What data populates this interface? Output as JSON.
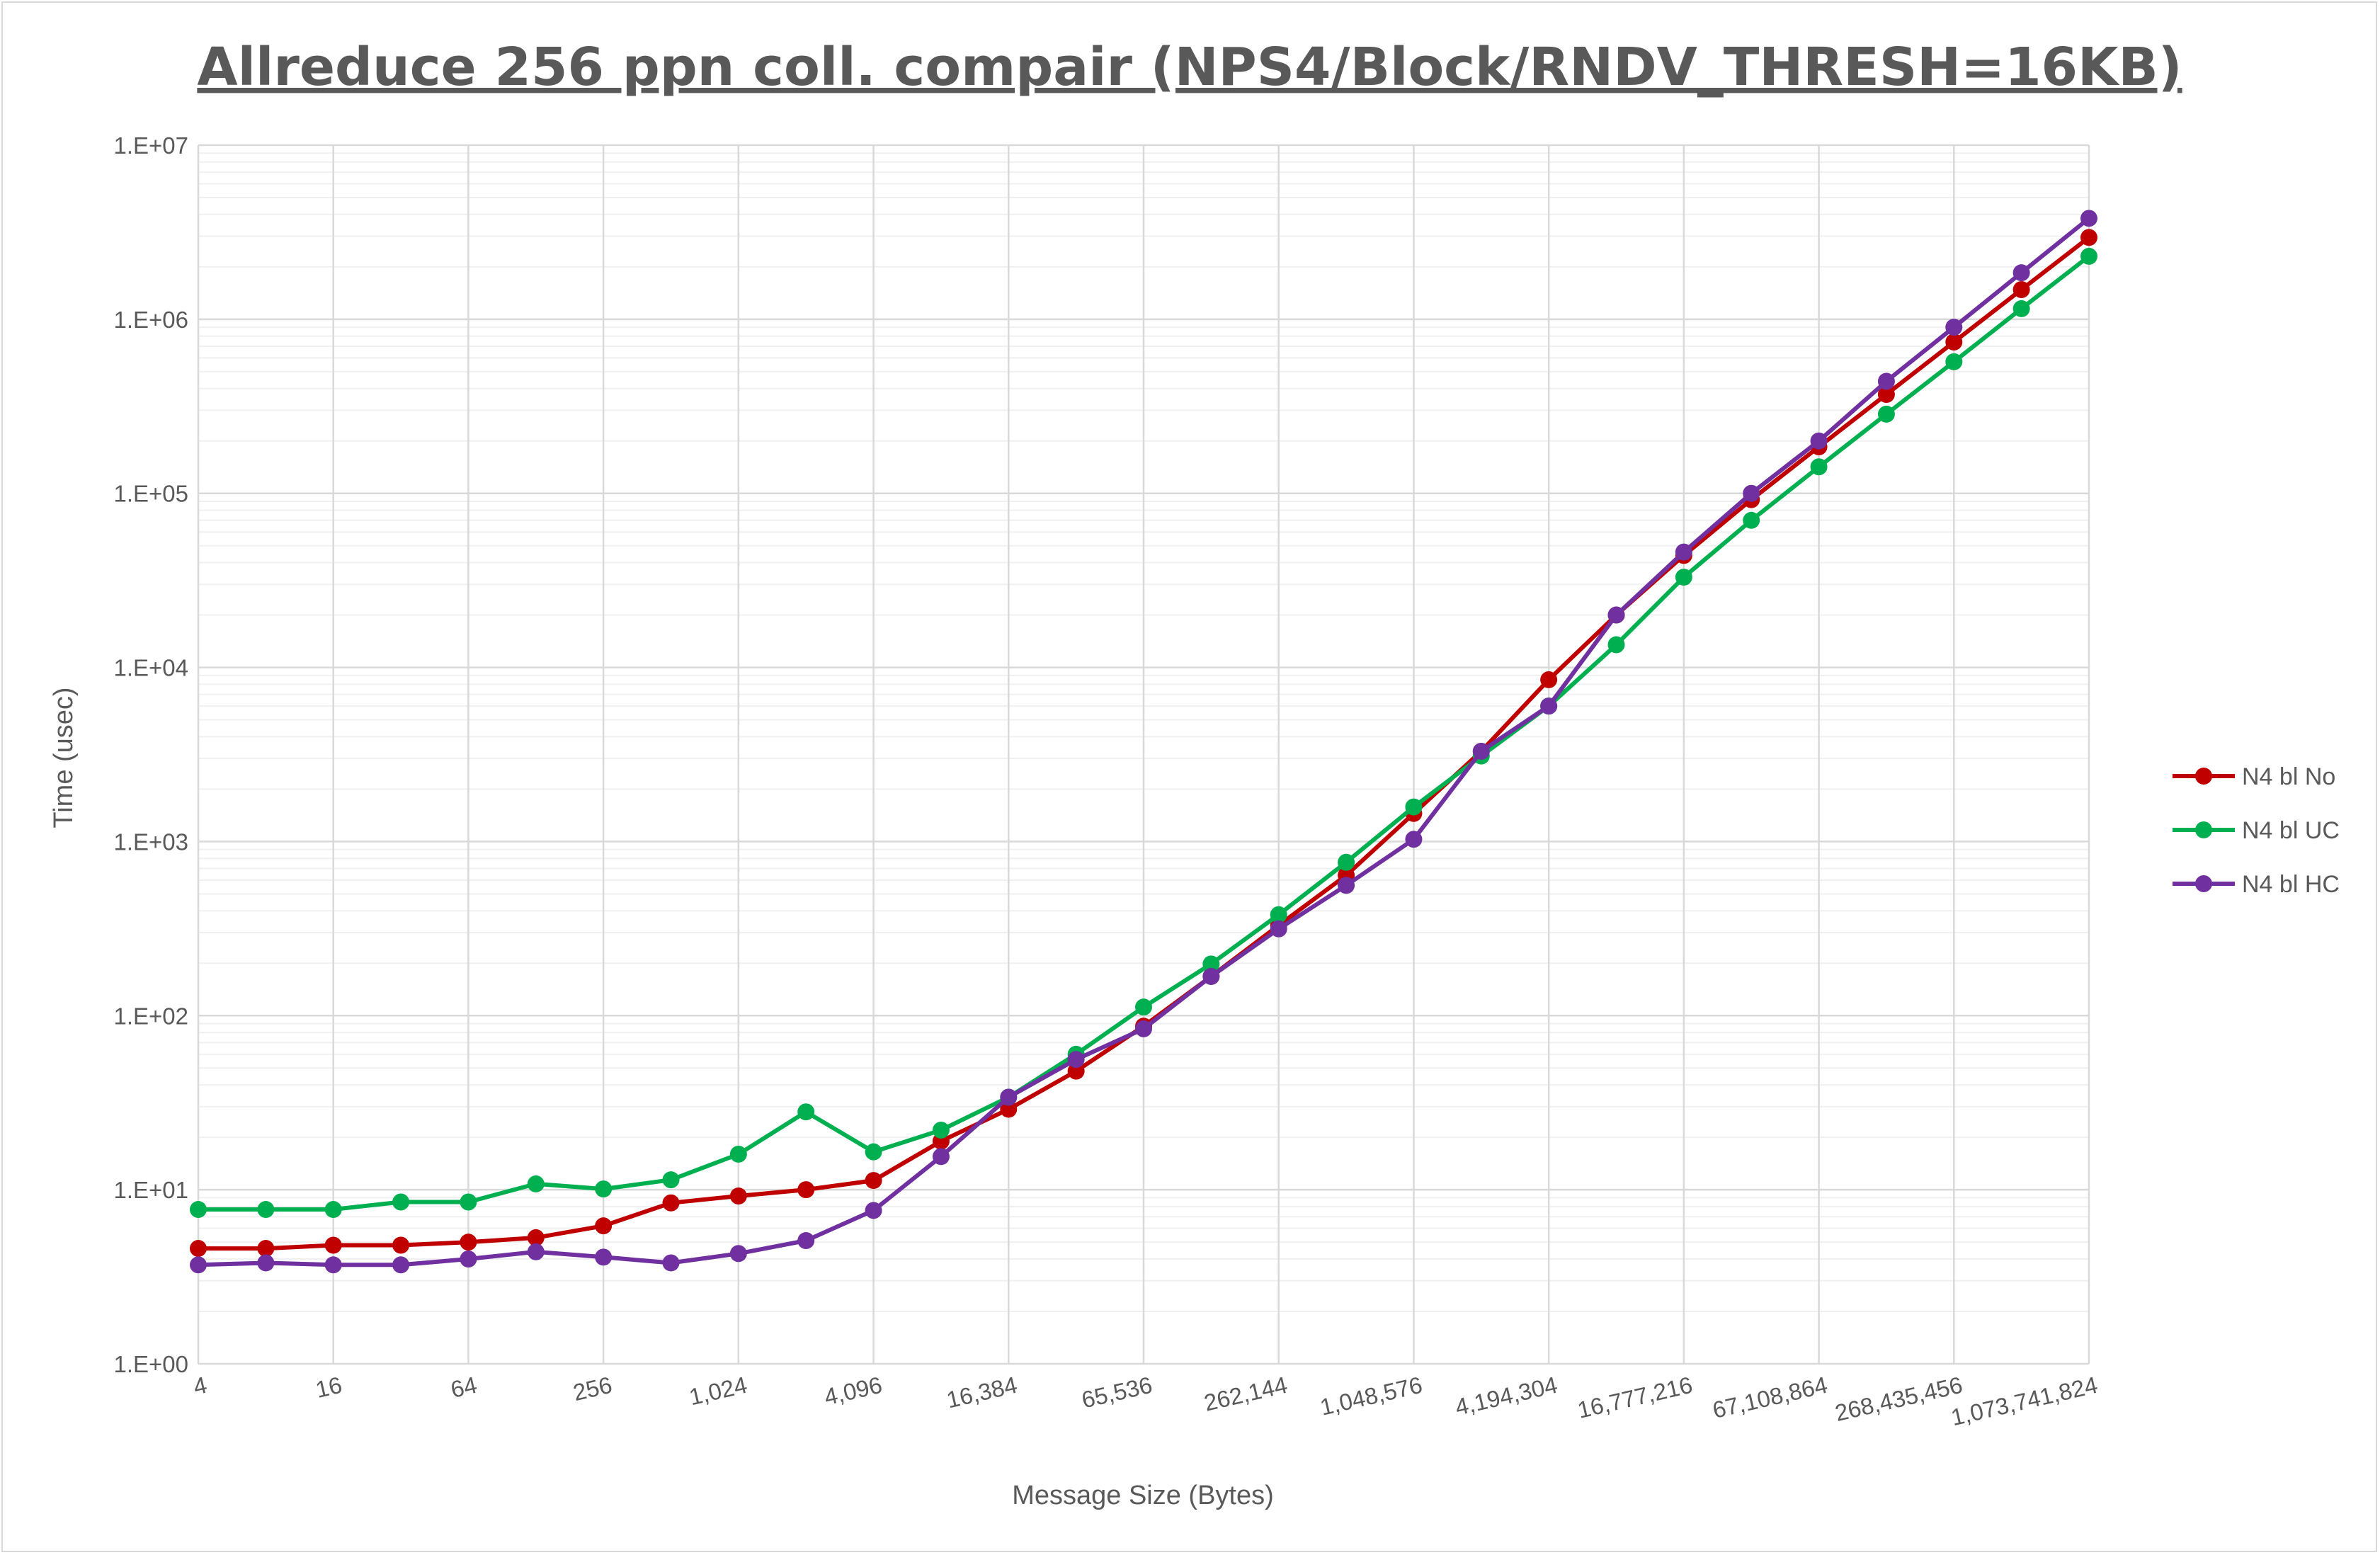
{
  "chart_data": {
    "type": "line",
    "title": "Allreduce 256 ppn coll. compair (NPS4/Block/RNDV_THRESH=16KB)",
    "xlabel": "Message Size (Bytes)",
    "ylabel": "Time (usec)",
    "y_scale": "log",
    "ylim": [
      1,
      10000000
    ],
    "y_tick_labels": [
      "1.E+00",
      "1.E+01",
      "1.E+02",
      "1.E+03",
      "1.E+04",
      "1.E+05",
      "1.E+06",
      "1.E+07"
    ],
    "x": [
      4,
      8,
      16,
      32,
      64,
      128,
      256,
      512,
      1024,
      2048,
      4096,
      8192,
      16384,
      32768,
      65536,
      131072,
      262144,
      524288,
      1048576,
      2097152,
      4194304,
      8388608,
      16777216,
      33554432,
      67108864,
      134217728,
      268435456,
      536870912,
      1073741824
    ],
    "x_tick_labels": [
      "4",
      "16",
      "64",
      "256",
      "1,024",
      "4,096",
      "16,384",
      "65,536",
      "262,144",
      "1,048,576",
      "4,194,304",
      "16,777,216",
      "67,108,864",
      "268,435,456",
      "1,073,741,824"
    ],
    "grid": true,
    "legend_position": "right",
    "series": [
      {
        "name": "N4 bl No",
        "color": "#c00000",
        "values": [
          4.6,
          4.6,
          4.8,
          4.8,
          5.0,
          5.3,
          6.2,
          8.4,
          9.2,
          10.0,
          11.3,
          19.0,
          29.0,
          48.0,
          87.0,
          168.0,
          330.0,
          640.0,
          1450.0,
          3300.0,
          8500.0,
          20000.0,
          44000.0,
          92000.0,
          185000.0,
          370000.0,
          740000.0,
          1480000.0,
          2950000.0
        ]
      },
      {
        "name": "N4 bl UC",
        "color": "#00b050",
        "values": [
          7.7,
          7.7,
          7.7,
          8.5,
          8.5,
          10.8,
          10.1,
          11.4,
          16.0,
          28.0,
          16.5,
          22.0,
          34.0,
          60.0,
          112.0,
          198.0,
          380.0,
          760.0,
          1580.0,
          3100.0,
          6000.0,
          13500.0,
          33000.0,
          70000.0,
          142000.0,
          285000.0,
          570000.0,
          1150000.0,
          2300000.0
        ]
      },
      {
        "name": "N4 bl HC",
        "color": "#7030a0",
        "values": [
          3.7,
          3.8,
          3.7,
          3.7,
          4.0,
          4.4,
          4.1,
          3.8,
          4.3,
          5.1,
          7.6,
          15.5,
          34.0,
          56.0,
          84.0,
          168.0,
          315.0,
          560.0,
          1030.0,
          3300.0,
          6000.0,
          20000.0,
          46000.0,
          100000.0,
          200000.0,
          440000.0,
          900000.0,
          1850000.0,
          3800000.0
        ]
      }
    ]
  }
}
